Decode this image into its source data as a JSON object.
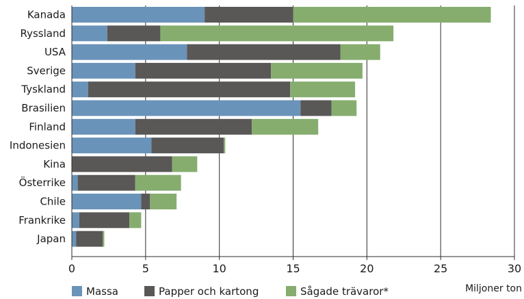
{
  "chart_data": {
    "type": "bar",
    "orientation": "horizontal",
    "stacked": true,
    "categories": [
      "Kanada",
      "Ryssland",
      "USA",
      "Sverige",
      "Tyskland",
      "Brasilien",
      "Finland",
      "Indonesien",
      "Kina",
      "Österrike",
      "Chile",
      "Frankrike",
      "Japan"
    ],
    "series": [
      {
        "name": "Massa",
        "color": "#6a93b9",
        "values": [
          9.0,
          2.4,
          7.8,
          4.3,
          1.1,
          15.5,
          4.3,
          5.4,
          0.0,
          0.4,
          4.7,
          0.5,
          0.3
        ]
      },
      {
        "name": "Papper och kartong",
        "color": "#5a5757",
        "values": [
          6.0,
          3.6,
          10.4,
          9.2,
          13.7,
          2.1,
          7.9,
          4.9,
          6.8,
          3.9,
          0.6,
          3.4,
          1.8
        ]
      },
      {
        "name": "Sågade trävaror*",
        "color": "#86ad6e",
        "values": [
          13.4,
          15.8,
          2.7,
          6.2,
          4.4,
          1.7,
          4.5,
          0.1,
          1.7,
          3.1,
          1.8,
          0.8,
          0.1
        ]
      }
    ],
    "xlim": [
      0,
      30
    ],
    "xticks": [
      0,
      5,
      10,
      15,
      20,
      25,
      30
    ],
    "xlabel": "Miljoner ton",
    "grid": "vertical",
    "legend": "bottom"
  }
}
